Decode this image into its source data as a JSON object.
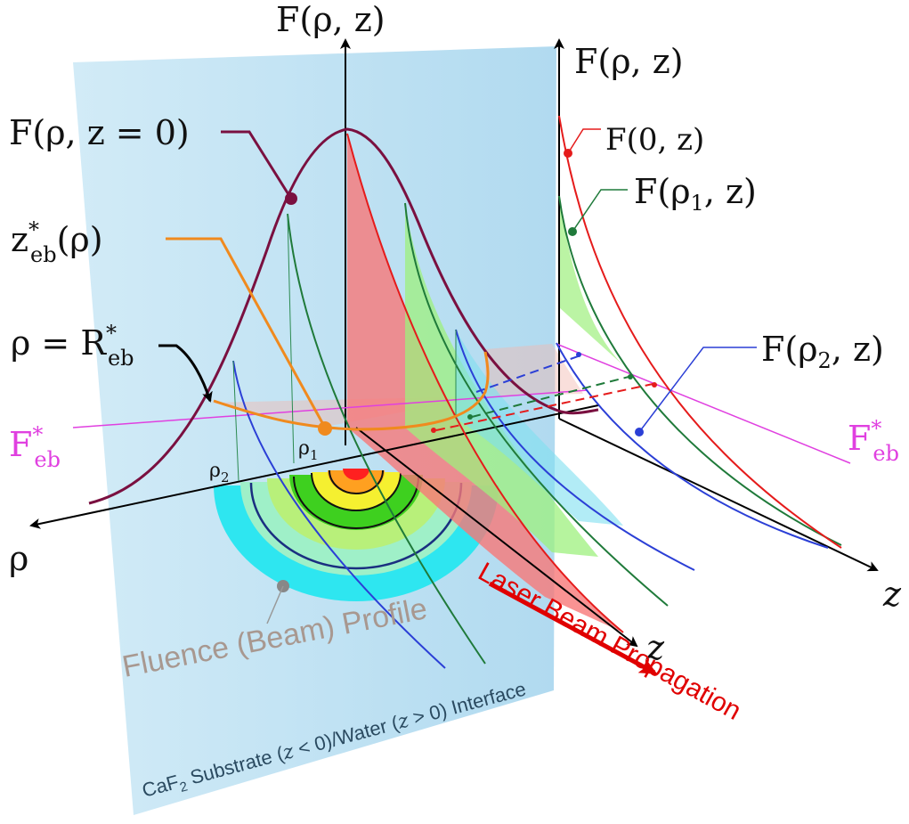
{
  "labels": {
    "f_rho_z_top": "F(ρ, z)",
    "f_rho_z_right": "F(ρ, z)",
    "f_rho_z0": "F(ρ, z = 0)",
    "z_eb": "z",
    "z_eb_sup": "*",
    "z_eb_sub": "eb",
    "z_eb_tail": "(ρ)",
    "rho_eq": "ρ = R",
    "rho_eq_sup": "*",
    "rho_eq_sub": "eb",
    "f_0_z": "F(0, z)",
    "f_rho1_z": "F(ρ",
    "f_rho1_sub": "1",
    "f_rho1_tail": ", z)",
    "f_rho2_z": "F(ρ",
    "f_rho2_sub": "2",
    "f_rho2_tail": ", z)",
    "f_eb_left": "F",
    "f_eb_right": "F",
    "f_eb_sup": "*",
    "f_eb_sub": "eb",
    "rho_axis": "ρ",
    "z_axis_right": "z",
    "z_axis_mid": "z",
    "rho1": "ρ",
    "rho1_sub": "1",
    "rho2": "ρ",
    "rho2_sub": "2",
    "beam_profile": "Fluence (Beam) Profile",
    "laser": "Laser Beam Propagation",
    "substrate": "CaF",
    "substrate_sub": "2",
    "substrate_tail1": " Substrate (",
    "substrate_z1": "z",
    "substrate_tail2": " < 0)/Water (",
    "substrate_z2": "z",
    "substrate_tail3": " > 0) Interface"
  },
  "colors": {
    "gaussian": "#7a1040",
    "threshold": "#e040e0",
    "orange": "#f08a1e",
    "red_curve": "#e51b1b",
    "green_curve": "#1f7a3a",
    "blue_curve": "#2b3fd6",
    "plane": "#bfe3f5",
    "red_fill": "#f77878",
    "green_fill": "#9ef07d",
    "laser": "#e00000",
    "profile_text": "#a89890",
    "substrate_text": "#2a4a60"
  }
}
